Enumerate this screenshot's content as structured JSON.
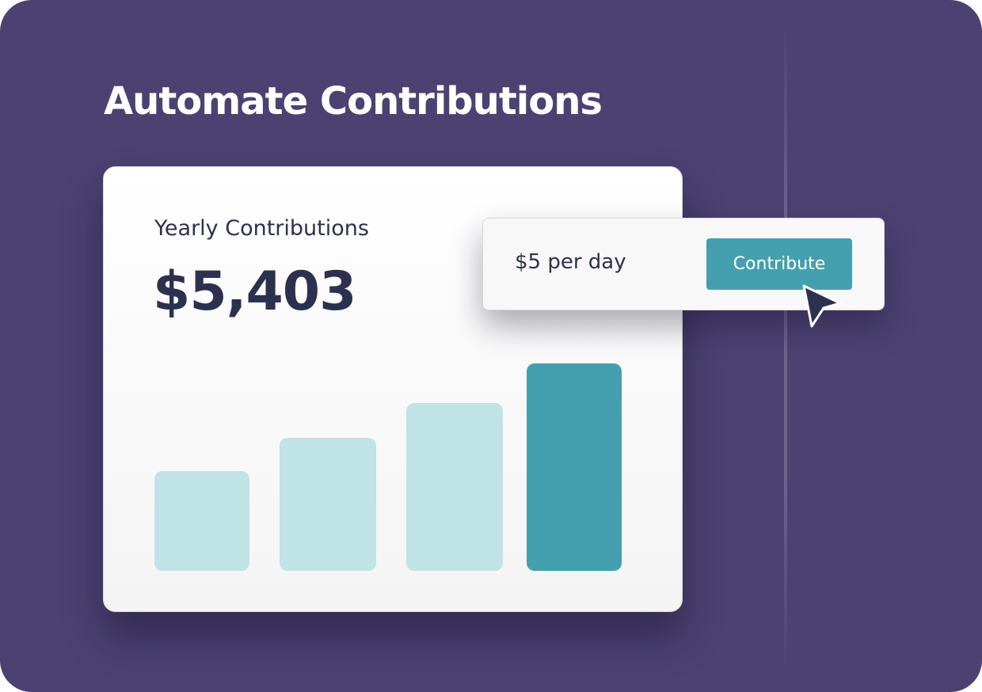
{
  "header": {
    "title": "Automate Contributions"
  },
  "card": {
    "label": "Yearly Contributions",
    "amount": "$5,403"
  },
  "popup": {
    "text": "$5 per day",
    "button": "Contribute"
  }
}
